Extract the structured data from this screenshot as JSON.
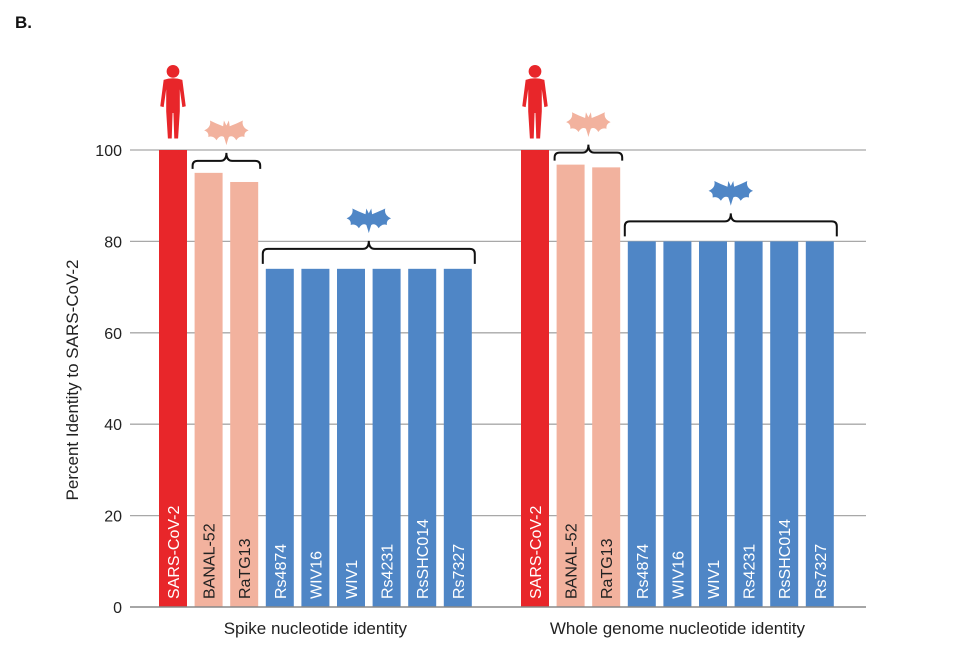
{
  "panel_label": "B.",
  "chart_data": {
    "type": "bar",
    "ylabel": "Percent Identity to SARS-CoV-2",
    "ylim": [
      0,
      100
    ],
    "yticks": [
      0,
      20,
      40,
      60,
      80,
      100
    ],
    "grid": true,
    "groups": [
      {
        "label": "Spike nucleotide identity",
        "bars": [
          {
            "name": "SARS-CoV-2",
            "value": 100,
            "host": "human",
            "color": "#e8262a"
          },
          {
            "name": "BANAL-52",
            "value": 95,
            "host": "bat-close",
            "color": "#f2b29e"
          },
          {
            "name": "RaTG13",
            "value": 93,
            "host": "bat-close",
            "color": "#f2b29e"
          },
          {
            "name": "Rs4874",
            "value": 74,
            "host": "bat",
            "color": "#4f86c6"
          },
          {
            "name": "WIV16",
            "value": 74,
            "host": "bat",
            "color": "#4f86c6"
          },
          {
            "name": "WIV1",
            "value": 74,
            "host": "bat",
            "color": "#4f86c6"
          },
          {
            "name": "Rs4231",
            "value": 74,
            "host": "bat",
            "color": "#4f86c6"
          },
          {
            "name": "RsSHC014",
            "value": 74,
            "host": "bat",
            "color": "#4f86c6"
          },
          {
            "name": "Rs7327",
            "value": 74,
            "host": "bat",
            "color": "#4f86c6"
          }
        ]
      },
      {
        "label": "Whole genome nucleotide identity",
        "bars": [
          {
            "name": "SARS-CoV-2",
            "value": 100,
            "host": "human",
            "color": "#e8262a"
          },
          {
            "name": "BANAL-52",
            "value": 96.8,
            "host": "bat-close",
            "color": "#f2b29e"
          },
          {
            "name": "RaTG13",
            "value": 96.2,
            "host": "bat-close",
            "color": "#f2b29e"
          },
          {
            "name": "Rs4874",
            "value": 80,
            "host": "bat",
            "color": "#4f86c6"
          },
          {
            "name": "WIV16",
            "value": 80,
            "host": "bat",
            "color": "#4f86c6"
          },
          {
            "name": "WIV1",
            "value": 80,
            "host": "bat",
            "color": "#4f86c6"
          },
          {
            "name": "Rs4231",
            "value": 80,
            "host": "bat",
            "color": "#4f86c6"
          },
          {
            "name": "RsSHC014",
            "value": 80,
            "host": "bat",
            "color": "#4f86c6"
          },
          {
            "name": "Rs7327",
            "value": 80,
            "host": "bat",
            "color": "#4f86c6"
          }
        ]
      }
    ],
    "icons": {
      "human": {
        "name": "human-silhouette-icon",
        "color": "#e8262a"
      },
      "bat_close": {
        "name": "bat-icon",
        "color": "#f2b29e"
      },
      "bat": {
        "name": "bat-icon",
        "color": "#4f86c6"
      }
    }
  }
}
